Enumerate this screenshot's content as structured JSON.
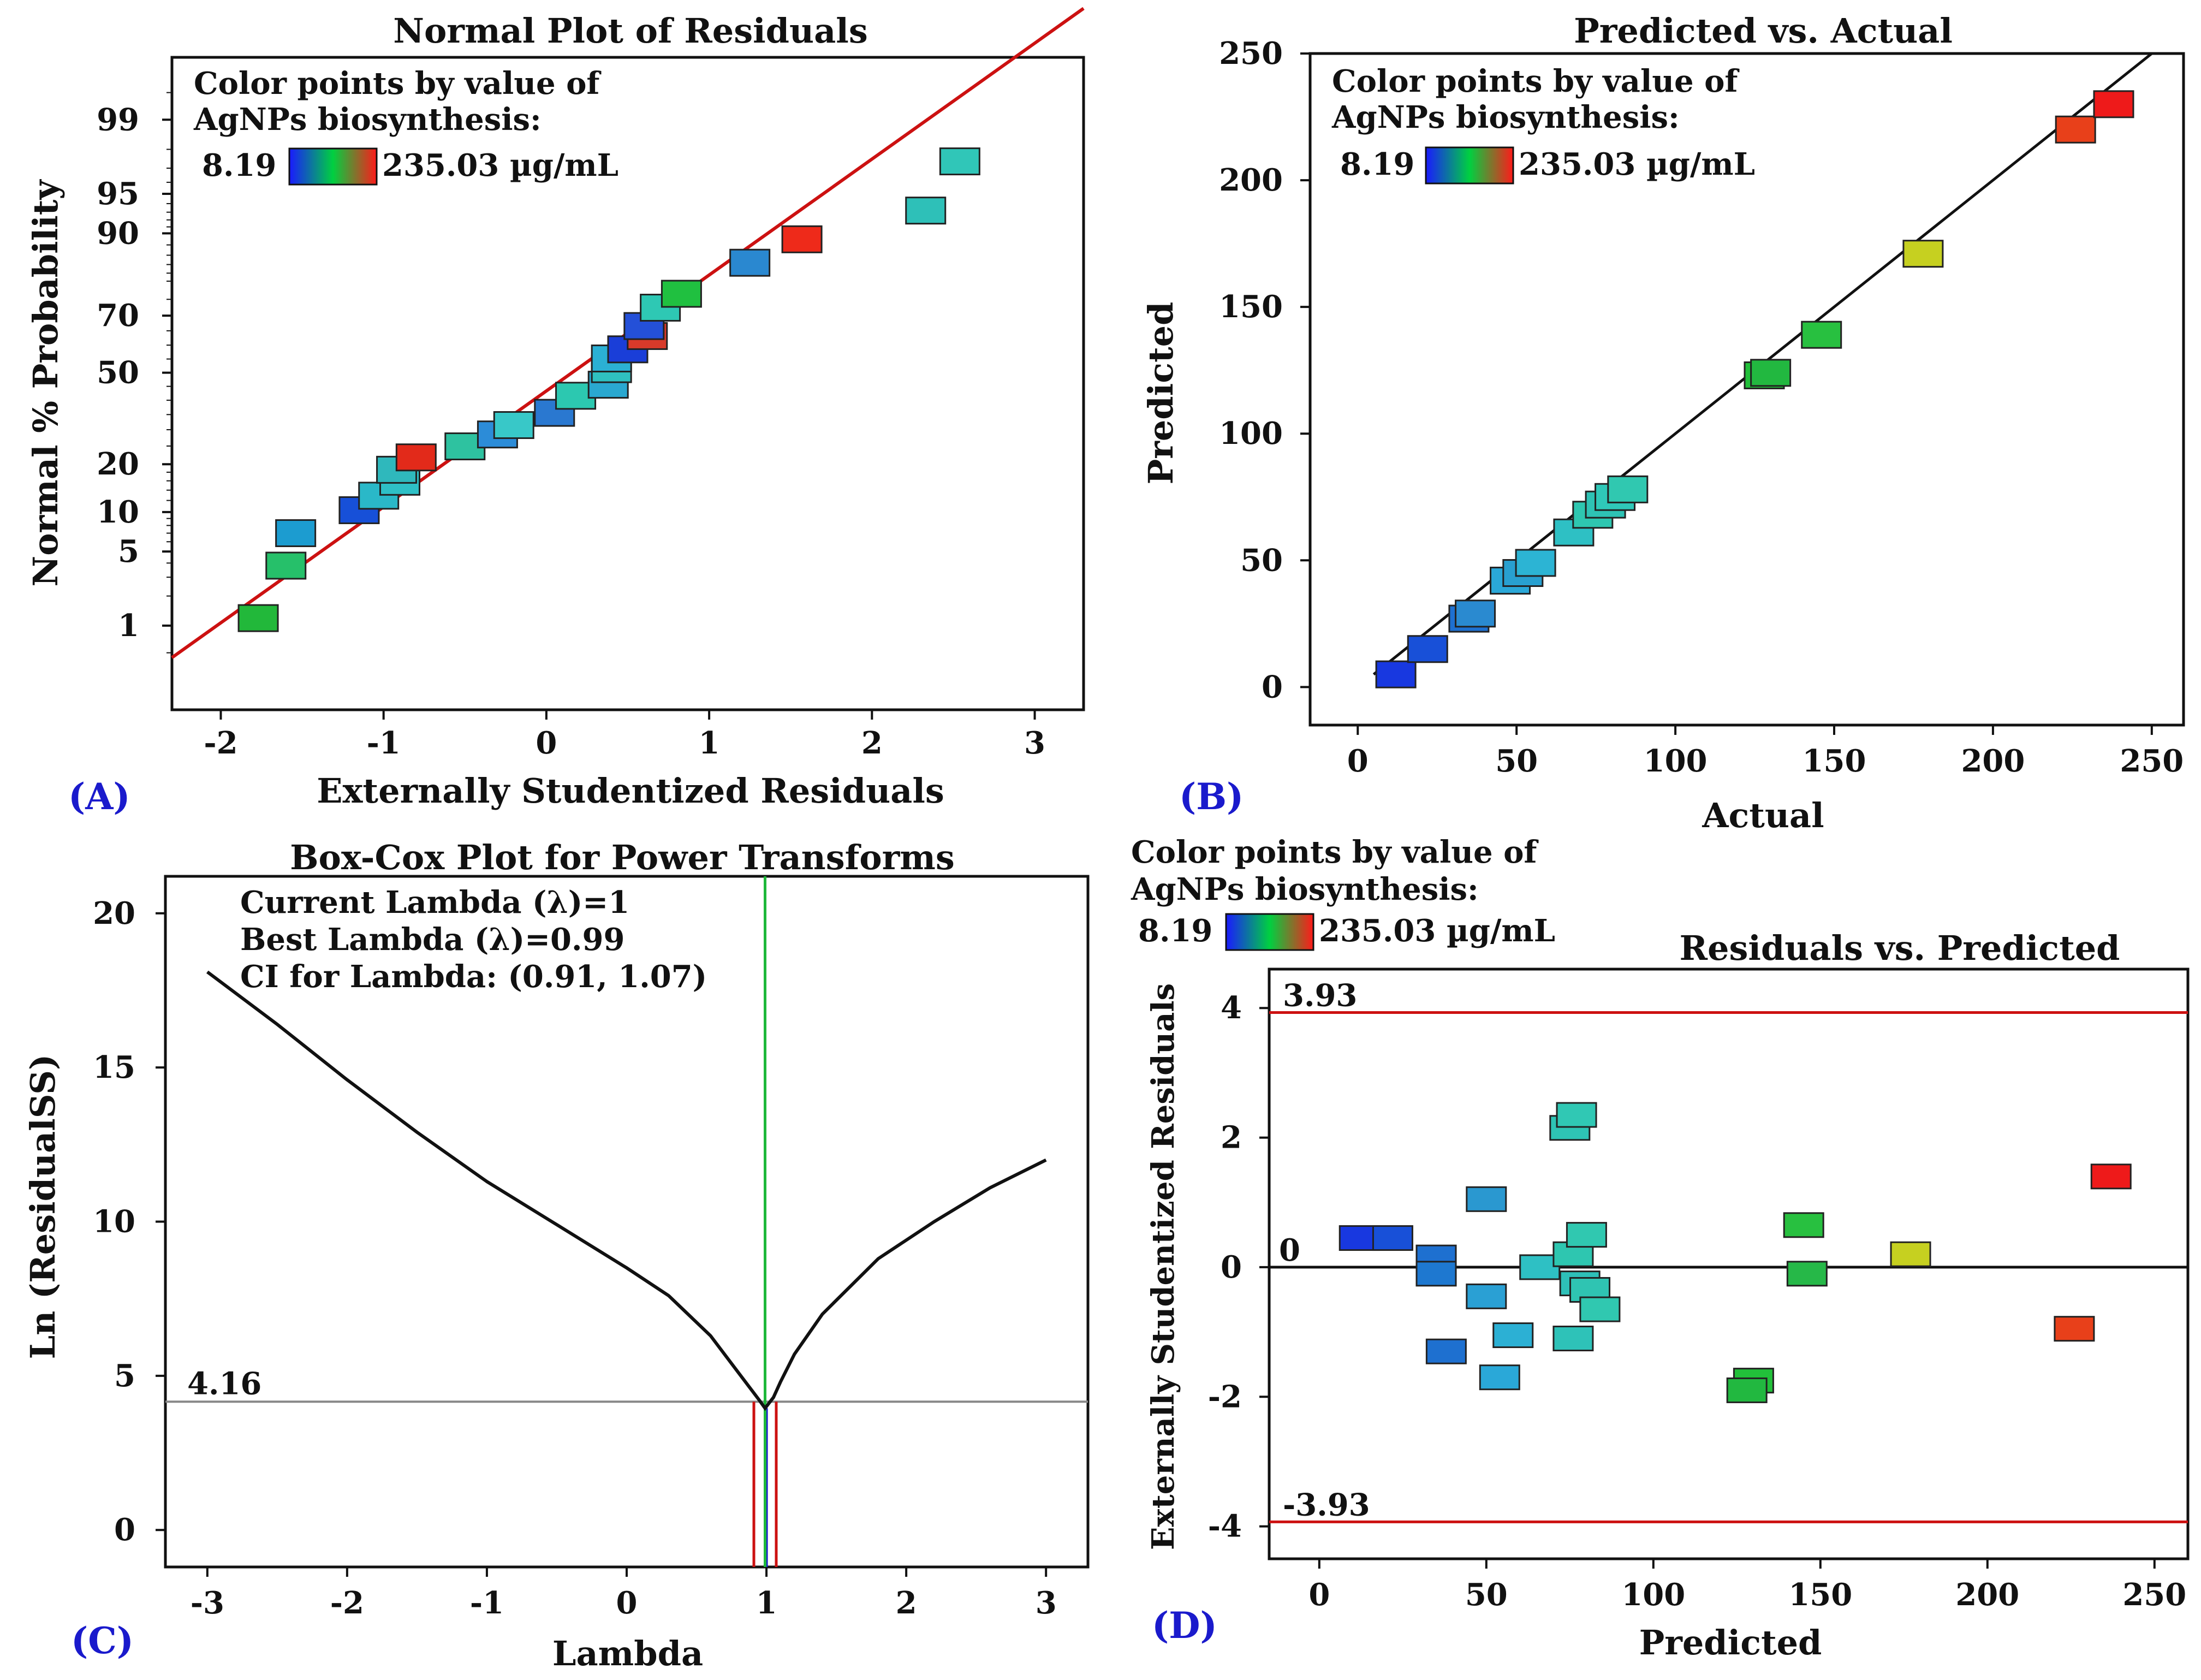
{
  "panel_labels": [
    "(A)",
    "(B)",
    "(C)",
    "(D)"
  ],
  "legend": {
    "line1": "Color points by value of",
    "line2": "AgNPs biosynthesis:",
    "min": "8.19",
    "max": "235.03 µg/mL",
    "colors": [
      "#1a1aff",
      "#00d040",
      "#ff1a1a"
    ]
  },
  "chart_data": [
    {
      "type": "scatter",
      "title": "Normal Plot of Residuals",
      "xlabel": "Externally Studentized Residuals",
      "ylabel": "Normal % Probability",
      "xlim": [
        -2.3,
        3.3
      ],
      "x_ticks": [
        -2,
        -1,
        0,
        1,
        2,
        3
      ],
      "x_tick_labels": [
        "-2",
        "-1",
        "0",
        "1",
        "2",
        "3"
      ],
      "y_ticks": [
        1,
        5,
        10,
        20,
        50,
        70,
        90,
        95,
        99
      ],
      "y_tick_labels": [
        "1",
        "5",
        "10",
        "20",
        "50",
        "70",
        "90",
        "95",
        "99"
      ],
      "y_scale": "normal probability",
      "fit_line": {
        "x": [
          -2.3,
          3.3
        ],
        "y_z": [
          -2.62,
          3.35
        ],
        "color": "#cc1111"
      },
      "points": [
        {
          "x": -1.77,
          "y": 1.2,
          "color": "#22b83a"
        },
        {
          "x": -1.6,
          "y": 3.8,
          "color": "#26c06a"
        },
        {
          "x": -1.54,
          "y": 7.0,
          "color": "#1c9cd0"
        },
        {
          "x": -1.15,
          "y": 10.3,
          "color": "#1750d8"
        },
        {
          "x": -1.03,
          "y": 12.9,
          "color": "#2ab8c8"
        },
        {
          "x": -0.9,
          "y": 15.8,
          "color": "#2ec0c6"
        },
        {
          "x": -0.92,
          "y": 18.6,
          "color": "#2fb8bc"
        },
        {
          "x": -0.8,
          "y": 21.8,
          "color": "#e22a1a"
        },
        {
          "x": -0.5,
          "y": 24.9,
          "color": "#2ec2a0"
        },
        {
          "x": -0.3,
          "y": 28.5,
          "color": "#2c8cd8"
        },
        {
          "x": -0.2,
          "y": 31.5,
          "color": "#38c8c8"
        },
        {
          "x": 0.05,
          "y": 35.6,
          "color": "#2a78d0"
        },
        {
          "x": 0.18,
          "y": 41.6,
          "color": "#2cc8b0"
        },
        {
          "x": 0.38,
          "y": 45.6,
          "color": "#2aa8d0"
        },
        {
          "x": 0.4,
          "y": 51.3,
          "color": "#2fc0c0"
        },
        {
          "x": 0.4,
          "y": 55.2,
          "color": "#2bb0d4"
        },
        {
          "x": 0.5,
          "y": 58.5,
          "color": "#1a3ed8"
        },
        {
          "x": 0.62,
          "y": 63.2,
          "color": "#d83a2a"
        },
        {
          "x": 0.6,
          "y": 66.6,
          "color": "#2450d8"
        },
        {
          "x": 0.7,
          "y": 72.5,
          "color": "#2ec8b4"
        },
        {
          "x": 0.83,
          "y": 76.6,
          "color": "#20c040"
        },
        {
          "x": 1.25,
          "y": 84.4,
          "color": "#2a88d0"
        },
        {
          "x": 1.57,
          "y": 89.0,
          "color": "#ee2a1a"
        },
        {
          "x": 2.33,
          "y": 93.2,
          "color": "#2ec0b8"
        },
        {
          "x": 2.54,
          "y": 97.4,
          "color": "#30c6b8"
        }
      ]
    },
    {
      "type": "scatter",
      "title": "Predicted vs. Actual",
      "xlabel": "Actual",
      "ylabel": "Predicted",
      "xlim": [
        -15,
        260
      ],
      "ylim": [
        -15,
        250
      ],
      "x_ticks": [
        0,
        50,
        100,
        150,
        200,
        250
      ],
      "x_tick_labels": [
        "0",
        "50",
        "100",
        "150",
        "200",
        "250"
      ],
      "y_ticks": [
        0,
        50,
        100,
        150,
        200,
        250
      ],
      "y_tick_labels": [
        "0",
        "50",
        "100",
        "150",
        "200",
        "250"
      ],
      "fit_line": {
        "x": [
          5,
          250
        ],
        "y": [
          5,
          250
        ],
        "color": "#111111"
      },
      "points": [
        {
          "x": 12,
          "y": 5,
          "color": "#1838e0"
        },
        {
          "x": 22,
          "y": 15,
          "color": "#1850d8"
        },
        {
          "x": 35,
          "y": 27,
          "color": "#1e70d0"
        },
        {
          "x": 37,
          "y": 29,
          "color": "#2a8ad0"
        },
        {
          "x": 48,
          "y": 42,
          "color": "#2aa8d8"
        },
        {
          "x": 52,
          "y": 45,
          "color": "#28a0d0"
        },
        {
          "x": 56,
          "y": 49,
          "color": "#2cb4d4"
        },
        {
          "x": 68,
          "y": 61,
          "color": "#2ec0c4"
        },
        {
          "x": 74,
          "y": 68,
          "color": "#2ec6b0"
        },
        {
          "x": 78,
          "y": 72,
          "color": "#2ec2b4"
        },
        {
          "x": 81,
          "y": 75,
          "color": "#2fc8b8"
        },
        {
          "x": 85,
          "y": 78,
          "color": "#30c8b0"
        },
        {
          "x": 128,
          "y": 123,
          "color": "#22c03a"
        },
        {
          "x": 130,
          "y": 124,
          "color": "#22b840"
        },
        {
          "x": 146,
          "y": 139,
          "color": "#28c040"
        },
        {
          "x": 178,
          "y": 171,
          "color": "#c6d020"
        },
        {
          "x": 226,
          "y": 220,
          "color": "#e8401a"
        },
        {
          "x": 238,
          "y": 230,
          "color": "#ee1a1a"
        }
      ]
    },
    {
      "type": "line",
      "title": "Box-Cox Plot for Power Transforms",
      "xlabel": "Lambda",
      "ylabel": "Ln (ResidualSS)",
      "xlim": [
        -3.3,
        3.3
      ],
      "ylim": [
        -1.2,
        21.2
      ],
      "x_ticks": [
        -3,
        -2,
        -1,
        0,
        1,
        2,
        3
      ],
      "x_tick_labels": [
        "-3",
        "-2",
        "-1",
        "0",
        "1",
        "2",
        "3"
      ],
      "y_ticks": [
        0,
        5,
        10,
        15,
        20
      ],
      "y_tick_labels": [
        "0",
        "5",
        "10",
        "15",
        "20"
      ],
      "annotations": [
        {
          "text": "Current Lambda (λ)=1",
          "color": "#1a1acc"
        },
        {
          "text": "Best Lambda (λ)=0.99",
          "color": "#1fb83a"
        },
        {
          "text": "CI for Lambda: (0.91, 1.07)",
          "color": "#111111"
        }
      ],
      "threshold": {
        "value": 4.16,
        "label": "4.16",
        "color": "#888888"
      },
      "current_lambda": {
        "value": 1,
        "color": "#1a1acc"
      },
      "best_lambda": {
        "value": 0.99,
        "color": "#1fb83a"
      },
      "ci": {
        "low": 0.91,
        "high": 1.07,
        "color": "#cc1111"
      },
      "curve": {
        "x": [
          -3,
          -2.5,
          -2,
          -1.5,
          -1,
          -0.5,
          0,
          0.3,
          0.6,
          0.8,
          0.9,
          0.95,
          0.99,
          1.05,
          1.1,
          1.2,
          1.4,
          1.8,
          2.2,
          2.6,
          3
        ],
        "y": [
          18.1,
          16.4,
          14.6,
          12.9,
          11.3,
          9.9,
          8.5,
          7.6,
          6.3,
          5.1,
          4.5,
          4.2,
          3.95,
          4.3,
          4.8,
          5.7,
          7.0,
          8.8,
          10.0,
          11.1,
          12.0
        ],
        "color": "#111111"
      }
    },
    {
      "type": "scatter",
      "title": "Residuals vs. Predicted",
      "xlabel": "Predicted",
      "ylabel": "Externally Studentized Residuals",
      "xlim": [
        -15,
        260
      ],
      "ylim": [
        -4.5,
        4.6
      ],
      "x_ticks": [
        0,
        50,
        100,
        150,
        200,
        250
      ],
      "x_tick_labels": [
        "0",
        "50",
        "100",
        "150",
        "200",
        "250"
      ],
      "y_ticks": [
        -4,
        -2,
        0,
        2,
        4
      ],
      "y_tick_labels": [
        "-4",
        "-2",
        "0",
        "2",
        "4"
      ],
      "limit_lines": [
        {
          "value": 3.93,
          "label": "3.93",
          "color": "#cc1111"
        },
        {
          "value": -3.93,
          "label": "-3.93",
          "color": "#cc1111"
        }
      ],
      "zero_line": {
        "value": 0,
        "label": "0",
        "color": "#111111"
      },
      "points": [
        {
          "x": 12,
          "y": 0.45,
          "color": "#1838e0"
        },
        {
          "x": 22,
          "y": 0.45,
          "color": "#1850d8"
        },
        {
          "x": 35,
          "y": 0.15,
          "color": "#1e70d0"
        },
        {
          "x": 35,
          "y": -0.1,
          "color": "#1e78d0"
        },
        {
          "x": 38,
          "y": -1.3,
          "color": "#1e70d0"
        },
        {
          "x": 50,
          "y": 1.05,
          "color": "#2a98d0"
        },
        {
          "x": 50,
          "y": -0.45,
          "color": "#2aa0d4"
        },
        {
          "x": 54,
          "y": -1.7,
          "color": "#2aa8d8"
        },
        {
          "x": 58,
          "y": -1.05,
          "color": "#2cb0d4"
        },
        {
          "x": 66,
          "y": 0.0,
          "color": "#2ec0c4"
        },
        {
          "x": 75,
          "y": 2.15,
          "color": "#2ec4b4"
        },
        {
          "x": 77,
          "y": 2.35,
          "color": "#30c8b4"
        },
        {
          "x": 76,
          "y": -1.1,
          "color": "#2ec2b8"
        },
        {
          "x": 76,
          "y": 0.2,
          "color": "#2ec6b0"
        },
        {
          "x": 78,
          "y": -0.25,
          "color": "#2ec0b8"
        },
        {
          "x": 80,
          "y": 0.5,
          "color": "#30c8b0"
        },
        {
          "x": 81,
          "y": -0.35,
          "color": "#2fc4b2"
        },
        {
          "x": 84,
          "y": -0.65,
          "color": "#30c8b0"
        },
        {
          "x": 130,
          "y": -1.75,
          "color": "#22c03a"
        },
        {
          "x": 128,
          "y": -1.9,
          "color": "#22b840"
        },
        {
          "x": 145,
          "y": 0.65,
          "color": "#28c040"
        },
        {
          "x": 146,
          "y": -0.1,
          "color": "#26b848"
        },
        {
          "x": 177,
          "y": 0.2,
          "color": "#c6d020"
        },
        {
          "x": 226,
          "y": -0.95,
          "color": "#e8401a"
        },
        {
          "x": 237,
          "y": 1.4,
          "color": "#ee1a1a"
        }
      ]
    }
  ]
}
